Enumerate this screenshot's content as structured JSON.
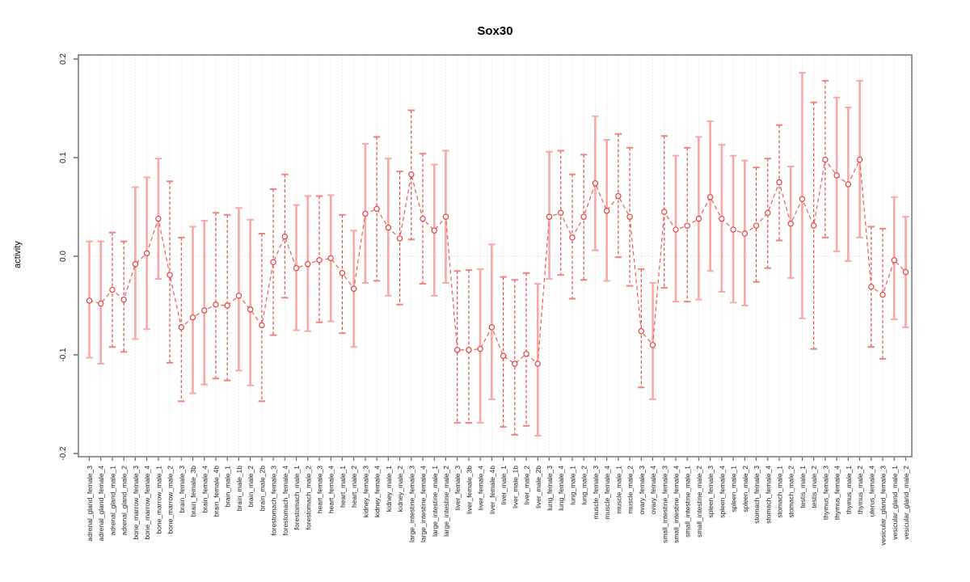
{
  "chart_data": {
    "type": "scatter",
    "title": "Sox30",
    "ylabel": "activity",
    "xlabel": "",
    "ylim": [
      -0.2,
      0.2
    ],
    "yticks": [
      0.2,
      0.1,
      0.0,
      -0.1,
      -0.2
    ],
    "ytick_labels": [
      "0.2",
      "0.1",
      "0.0",
      "-0.1",
      "-0.2"
    ],
    "grid": "vertical dotted line per category; horizontal dotted line at zero",
    "legend_position": "none",
    "point_marker": "open-circle",
    "categories": [
      "adrenal_gland_female_3",
      "adrenal_gland_female_4",
      "adrenal_gland_male_1",
      "adrenal_gland_male_2",
      "bone_marrow_female_3",
      "bone_marrow_female_4",
      "bone_marrow_male_1",
      "bone_marrow_male_2",
      "brain_female_3",
      "brain_female_3b",
      "brain_female_4",
      "brain_female_4b",
      "brain_male_1",
      "brain_male_1b",
      "brain_male_2",
      "brain_male_2b",
      "forestomach_female_3",
      "forestomach_female_4",
      "forestomach_male_1",
      "forestomach_male_2",
      "heart_female_3",
      "heart_female_4",
      "heart_male_1",
      "heart_male_2",
      "kidney_female_3",
      "kidney_female_4",
      "kidney_male_1",
      "kidney_male_2",
      "large_intestine_female_3",
      "large_intestine_female_4",
      "large_intestine_male_1",
      "large_intestine_male_2",
      "liver_female_3",
      "liver_female_3b",
      "liver_female_4",
      "liver_female_4b",
      "liver_male_1",
      "liver_male_1b",
      "liver_male_2",
      "liver_male_2b",
      "lung_female_3",
      "lung_female_4",
      "lung_male_1",
      "lung_male_2",
      "muscle_female_3",
      "muscle_female_4",
      "muscle_male_1",
      "muscle_male_2",
      "ovary_female_3",
      "ovary_female_4",
      "small_intestine_female_3",
      "small_intestine_female_4",
      "small_intestine_male_1",
      "small_intestine_male_2",
      "spleen_female_3",
      "spleen_female_4",
      "spleen_male_1",
      "spleen_male_2",
      "stomach_female_3",
      "stomach_female_4",
      "stomach_male_1",
      "stomach_male_2",
      "testis_male_1",
      "testis_male_2",
      "thymus_female_3",
      "thymus_female_4",
      "thymus_male_1",
      "thymus_male_2",
      "uterus_female_4",
      "vesicular_gland_female_3",
      "vesicular_gland_male_1",
      "vesicular_gland_male_2"
    ],
    "series": [
      {
        "name": "activity",
        "values": [
          -0.045,
          -0.048,
          -0.034,
          -0.044,
          -0.008,
          0.003,
          0.038,
          -0.019,
          -0.072,
          -0.062,
          -0.055,
          -0.049,
          -0.05,
          -0.04,
          -0.054,
          -0.07,
          -0.006,
          0.02,
          -0.012,
          -0.008,
          -0.004,
          -0.002,
          -0.017,
          -0.033,
          0.043,
          0.048,
          0.029,
          0.018,
          0.083,
          0.038,
          0.026,
          0.04,
          -0.095,
          -0.095,
          -0.094,
          -0.072,
          -0.101,
          -0.109,
          -0.099,
          -0.109,
          0.04,
          0.044,
          0.019,
          0.04,
          0.074,
          0.046,
          0.061,
          0.04,
          -0.076,
          -0.09,
          0.045,
          0.027,
          0.031,
          0.038,
          0.06,
          0.038,
          0.027,
          0.023,
          0.031,
          0.044,
          0.075,
          0.033,
          0.058,
          0.031,
          0.098,
          0.082,
          0.073,
          0.098,
          -0.031,
          -0.039,
          -0.004,
          -0.016
        ],
        "ci_low": [
          -0.103,
          -0.109,
          -0.092,
          -0.097,
          -0.084,
          -0.074,
          -0.023,
          -0.108,
          -0.147,
          -0.139,
          -0.13,
          -0.124,
          -0.126,
          -0.116,
          -0.131,
          -0.147,
          -0.08,
          -0.042,
          -0.075,
          -0.076,
          -0.067,
          -0.066,
          -0.078,
          -0.092,
          -0.027,
          -0.025,
          -0.04,
          -0.049,
          0.017,
          -0.028,
          -0.04,
          -0.027,
          -0.169,
          -0.169,
          -0.169,
          -0.145,
          -0.173,
          -0.181,
          -0.172,
          -0.182,
          -0.023,
          -0.019,
          -0.043,
          -0.024,
          0.006,
          -0.025,
          -0.001,
          -0.03,
          -0.133,
          -0.145,
          -0.032,
          -0.046,
          -0.046,
          -0.044,
          -0.015,
          -0.036,
          -0.047,
          -0.05,
          -0.026,
          -0.012,
          0.016,
          -0.022,
          -0.063,
          -0.094,
          0.019,
          0.005,
          -0.005,
          0.019,
          -0.092,
          -0.104,
          -0.064,
          -0.072
        ],
        "ci_high": [
          0.015,
          0.015,
          0.024,
          0.015,
          0.07,
          0.08,
          0.099,
          0.076,
          0.019,
          0.03,
          0.036,
          0.044,
          0.042,
          0.049,
          0.037,
          0.023,
          0.068,
          0.083,
          0.052,
          0.061,
          0.061,
          0.062,
          0.042,
          0.026,
          0.114,
          0.121,
          0.099,
          0.086,
          0.148,
          0.104,
          0.093,
          0.107,
          -0.015,
          -0.014,
          -0.013,
          0.012,
          -0.021,
          -0.024,
          -0.017,
          -0.028,
          0.106,
          0.107,
          0.083,
          0.103,
          0.142,
          0.118,
          0.124,
          0.11,
          -0.013,
          -0.027,
          0.122,
          0.102,
          0.11,
          0.121,
          0.137,
          0.113,
          0.102,
          0.097,
          0.09,
          0.099,
          0.133,
          0.091,
          0.186,
          0.156,
          0.178,
          0.161,
          0.151,
          0.178,
          0.03,
          0.028,
          0.06,
          0.04
        ],
        "bar_style": [
          "solid",
          "solid",
          "dashed",
          "dashed",
          "solid",
          "solid",
          "solid",
          "dashed",
          "dashed",
          "solid",
          "solid",
          "dashed",
          "dashed",
          "solid",
          "solid",
          "dashed",
          "dashed",
          "dashed",
          "solid",
          "solid",
          "dashed",
          "solid",
          "dashed",
          "solid",
          "solid",
          "dashed",
          "solid",
          "dashed",
          "dashed",
          "dashed",
          "solid",
          "solid",
          "dashed",
          "dashed",
          "solid",
          "solid",
          "dashed",
          "dashed",
          "dashed",
          "solid",
          "solid",
          "dashed",
          "dashed",
          "dashed",
          "solid",
          "solid",
          "dashed",
          "dashed",
          "dashed",
          "solid",
          "dashed",
          "solid",
          "dashed",
          "solid",
          "solid",
          "solid",
          "solid",
          "solid",
          "dashed",
          "dashed",
          "dashed",
          "solid",
          "solid",
          "dashed",
          "dashed",
          "solid",
          "solid",
          "solid",
          "dashed",
          "dashed",
          "solid",
          "solid"
        ]
      }
    ],
    "colors": {
      "point": "#e5403a",
      "series_line": "#f15f57",
      "errorbar_dashed": "#e2382f",
      "errorbar_solid": "#f7a8a4",
      "cap_dashed": "#ef837b",
      "cap_solid": "#f7a8a4",
      "grid": "#d8d8d8",
      "zero_line": "#d0d0d0",
      "box": "#8b8b8b",
      "tick": "#666666",
      "text": "#1a1a1a"
    }
  }
}
